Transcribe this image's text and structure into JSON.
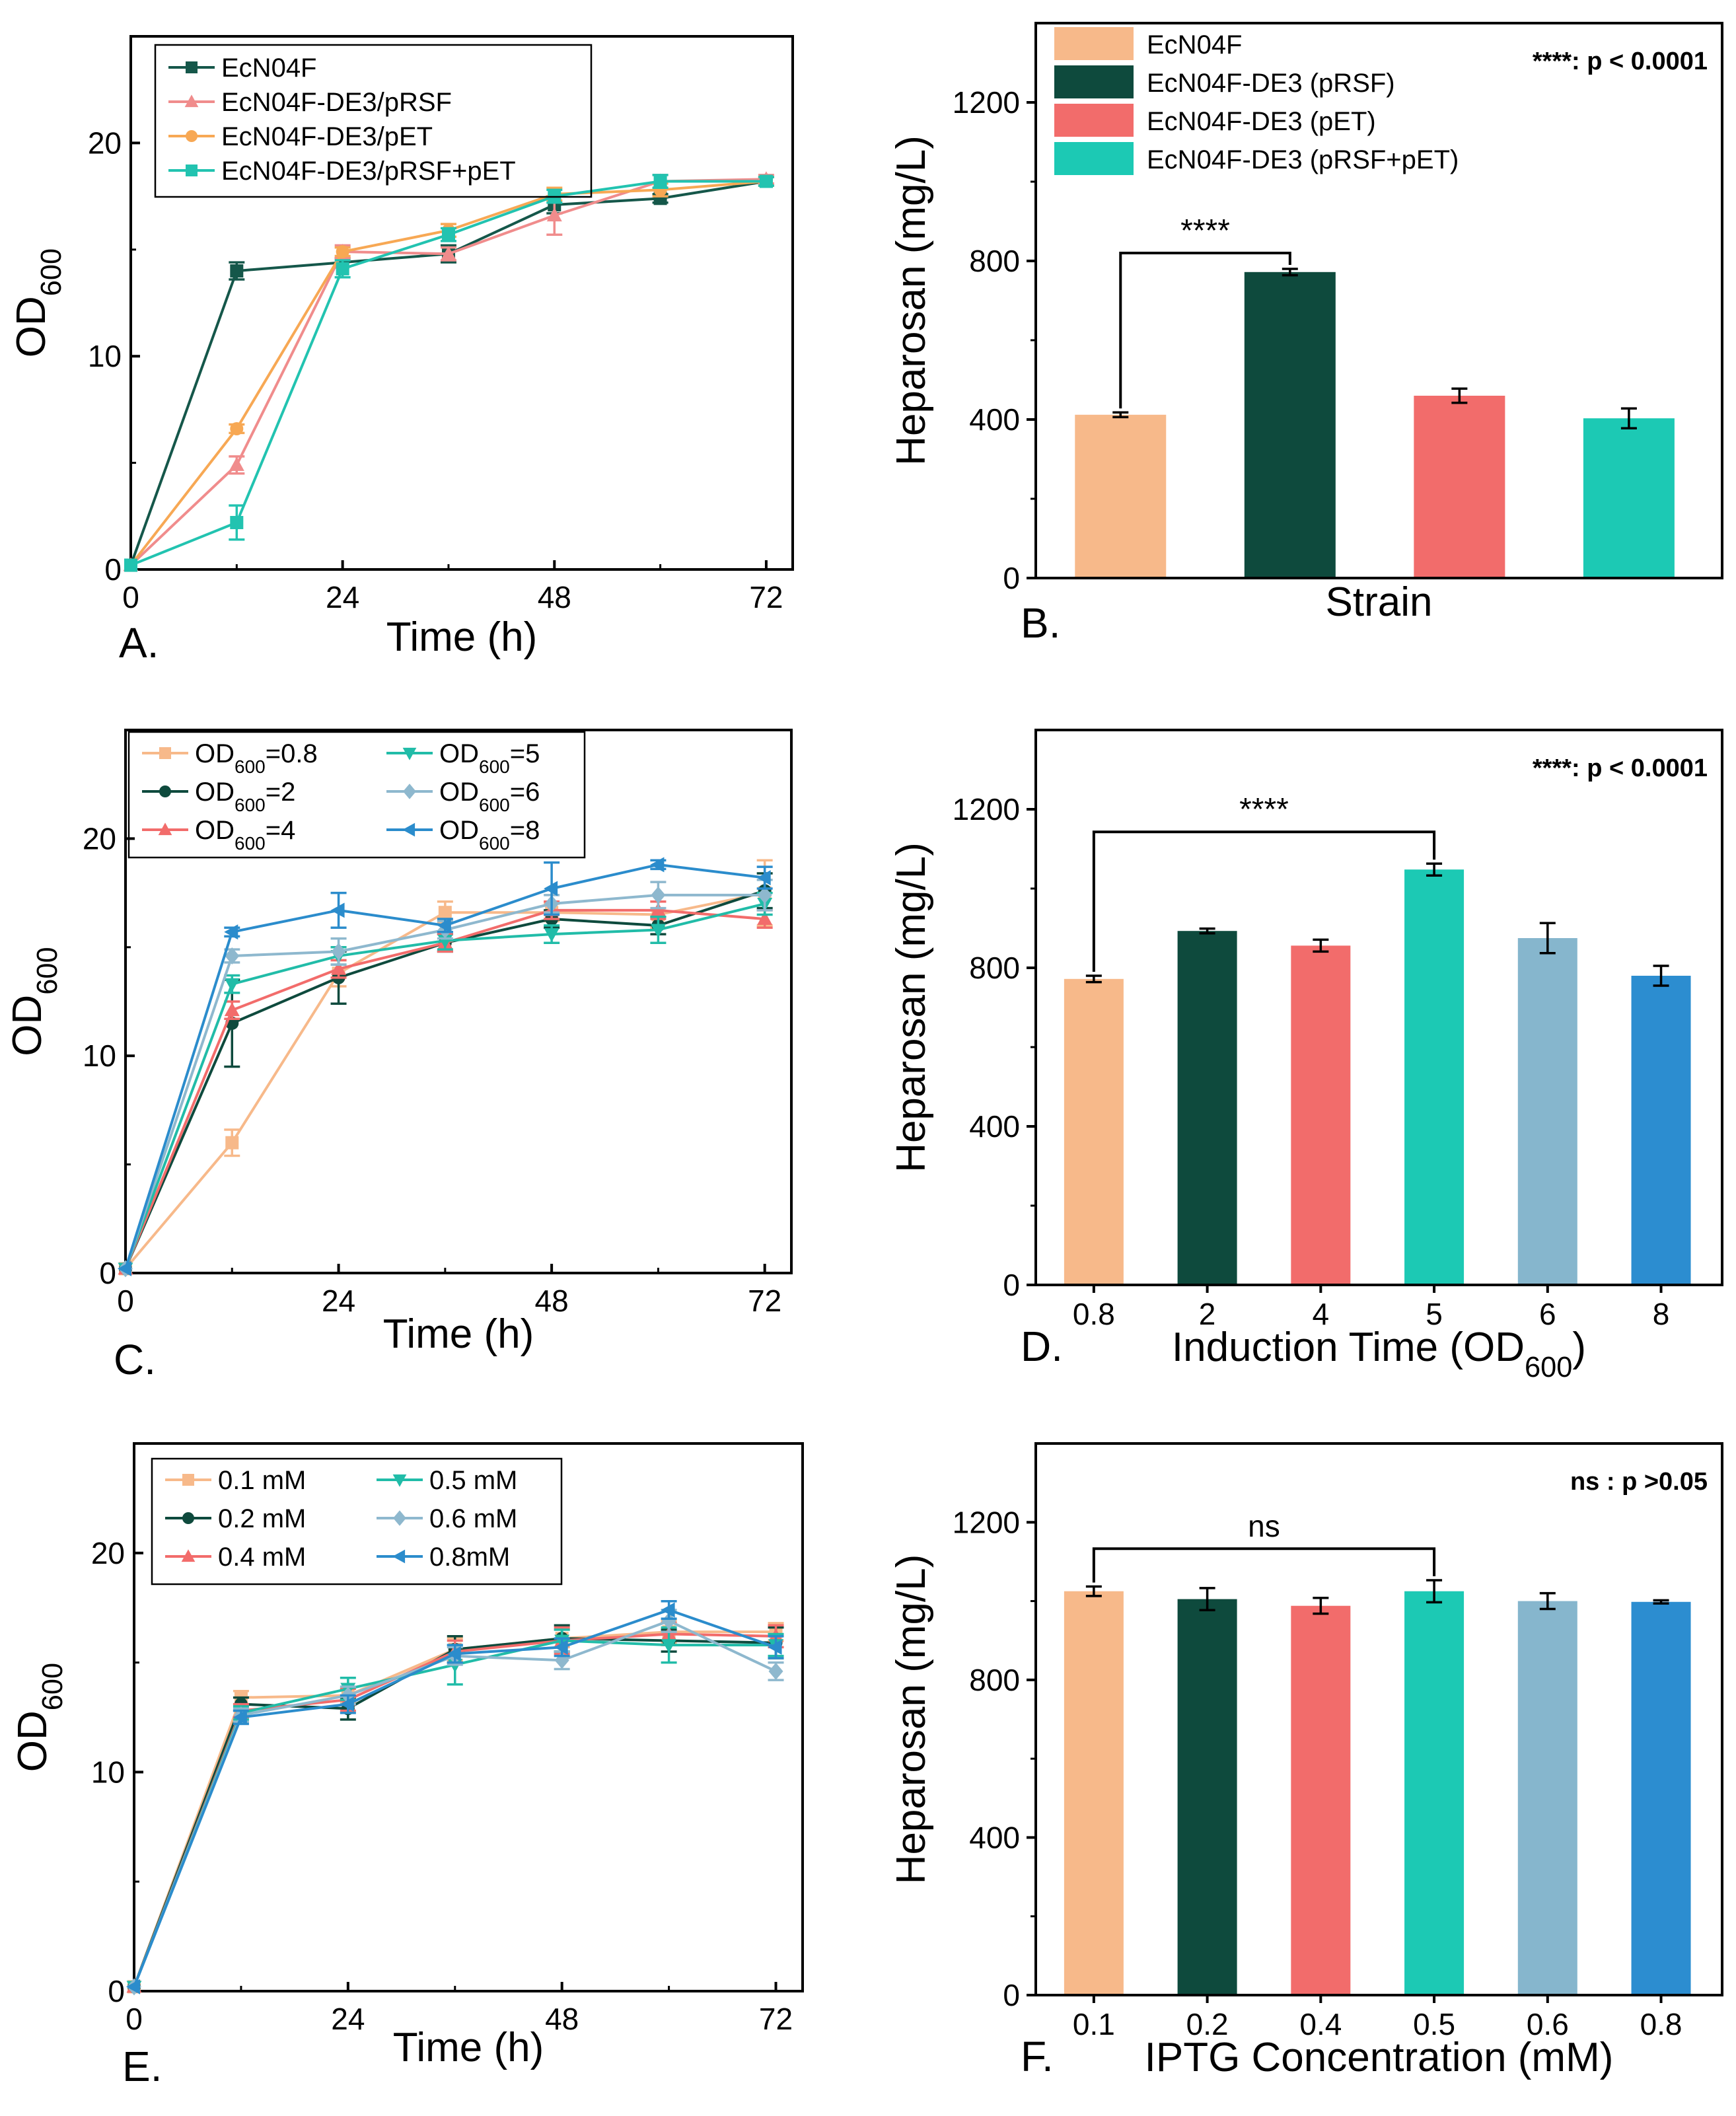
{
  "colors": {
    "peach": "#F7B98A",
    "darkgreen": "#0E4A3D",
    "red": "#F26C6B",
    "teal": "#1CC9B4",
    "lightblue": "#86B6CD",
    "blue": "#2C8DD0",
    "green_line": "#15574A",
    "pink_line": "#F08C8C",
    "orange_line": "#F7A854",
    "teal_line": "#22C3B0",
    "teal_line2": "#21BCA8",
    "grayblue_line": "#8EB8CE",
    "blue_line": "#2B8CCC"
  },
  "chart_data": [
    {
      "panel": "A.",
      "type": "line",
      "xlabel": "Time (h)",
      "ylabel": "OD600",
      "xlim": [
        0,
        75
      ],
      "ylim": [
        0,
        25
      ],
      "xticks": [
        "0",
        "24",
        "48",
        "72"
      ],
      "yticks": [
        "0",
        "10",
        "20"
      ],
      "series": [
        {
          "name": "EcN04F",
          "color": "#15574A",
          "marker": "square",
          "x": [
            0,
            12,
            24,
            36,
            48,
            60,
            72
          ],
          "y": [
            0.2,
            14.0,
            14.4,
            14.8,
            17.1,
            17.4,
            18.2
          ],
          "err": [
            0,
            0.4,
            0.2,
            0.4,
            0.4,
            0.2,
            0.2
          ]
        },
        {
          "name": "EcN04F-DE3/pRSF",
          "color": "#F08C8C",
          "marker": "triangle",
          "x": [
            0,
            12,
            24,
            36,
            48,
            60,
            72
          ],
          "y": [
            0.2,
            4.9,
            14.9,
            14.8,
            16.6,
            18.2,
            18.3
          ],
          "err": [
            0,
            0.4,
            0.3,
            0.3,
            0.9,
            0.3,
            0.2
          ]
        },
        {
          "name": "EcN04F-DE3/pET",
          "color": "#F7A854",
          "marker": "circle",
          "x": [
            0,
            12,
            24,
            36,
            48,
            60,
            72
          ],
          "y": [
            0.2,
            6.6,
            14.9,
            15.9,
            17.6,
            17.8,
            18.2
          ],
          "err": [
            0,
            0.2,
            0.2,
            0.3,
            0.3,
            0.3,
            0.2
          ]
        },
        {
          "name": "EcN04F-DE3/pRSF+pET",
          "color": "#22C3B0",
          "marker": "square",
          "x": [
            0,
            12,
            24,
            36,
            48,
            60,
            72
          ],
          "y": [
            0.2,
            2.2,
            14.1,
            15.7,
            17.5,
            18.2,
            18.2
          ],
          "err": [
            0,
            0.8,
            0.4,
            0.3,
            0.3,
            0.3,
            0.2
          ]
        }
      ]
    },
    {
      "panel": "B.",
      "type": "bar",
      "xlabel": "Strain",
      "ylabel": "Heparosan (mg/L)",
      "ylim": [
        0,
        1400
      ],
      "yticks": [
        "0",
        "400",
        "800",
        "1200"
      ],
      "categories": [
        "EcN04F",
        "EcN04F-DE3 (pRSF)",
        "EcN04F-DE3 (pET)",
        "EcN04F-DE3 (pRSF+pET)"
      ],
      "values": [
        412,
        772,
        460,
        403
      ],
      "errors": [
        6,
        8,
        18,
        25
      ],
      "colors": [
        "#F7B98A",
        "#0E4A3D",
        "#F26C6B",
        "#1CC9B4"
      ],
      "significance": {
        "label": "****",
        "from": 0,
        "to": 1,
        "note": "****: p < 0.0001"
      }
    },
    {
      "panel": "C.",
      "type": "line",
      "xlabel": "Time (h)",
      "ylabel": "OD600",
      "xlim": [
        0,
        75
      ],
      "ylim": [
        0,
        25
      ],
      "xticks": [
        "0",
        "24",
        "48",
        "72"
      ],
      "yticks": [
        "0",
        "10",
        "20"
      ],
      "series": [
        {
          "name": "OD600=0.8",
          "color": "#F7B98A",
          "marker": "square",
          "x": [
            0,
            12,
            24,
            36,
            48,
            60,
            72
          ],
          "y": [
            0.2,
            6.0,
            13.8,
            16.6,
            16.6,
            16.5,
            17.5
          ],
          "err": [
            0,
            0.6,
            0.6,
            0.5,
            0.4,
            0.6,
            1.5
          ]
        },
        {
          "name": "OD600=2",
          "color": "#0E4A3D",
          "marker": "circle",
          "x": [
            0,
            12,
            24,
            36,
            48,
            60,
            72
          ],
          "y": [
            0.2,
            11.5,
            13.6,
            15.2,
            16.3,
            16.0,
            17.6
          ],
          "err": [
            0,
            2.0,
            1.2,
            0.4,
            0.4,
            0.4,
            0.8
          ]
        },
        {
          "name": "OD600=4",
          "color": "#F26C6B",
          "marker": "triangle",
          "x": [
            0,
            12,
            24,
            36,
            48,
            60,
            72
          ],
          "y": [
            0.2,
            12.1,
            14.0,
            15.2,
            16.7,
            16.7,
            16.3
          ],
          "err": [
            0,
            0.4,
            0.4,
            0.4,
            0.4,
            0.4,
            0.4
          ]
        },
        {
          "name": "OD600=5",
          "color": "#21BCA8",
          "marker": "tri-down",
          "x": [
            0,
            12,
            24,
            36,
            48,
            60,
            72
          ],
          "y": [
            0.2,
            13.3,
            14.6,
            15.3,
            15.6,
            15.8,
            17.0
          ],
          "err": [
            0,
            0.4,
            0.4,
            0.4,
            0.4,
            0.6,
            0.5
          ]
        },
        {
          "name": "OD600=6",
          "color": "#8EB8CE",
          "marker": "diamond",
          "x": [
            0,
            12,
            24,
            36,
            48,
            60,
            72
          ],
          "y": [
            0.2,
            14.6,
            14.8,
            15.8,
            17.0,
            17.4,
            17.4
          ],
          "err": [
            0,
            0.3,
            0.6,
            0.4,
            0.4,
            0.6,
            0.7
          ]
        },
        {
          "name": "OD600=8",
          "color": "#2B8CCC",
          "marker": "tri-left",
          "x": [
            0,
            12,
            24,
            36,
            48,
            60,
            72
          ],
          "y": [
            0.2,
            15.7,
            16.7,
            16.0,
            17.7,
            18.8,
            18.2
          ],
          "err": [
            0,
            0.2,
            0.8,
            0.3,
            1.2,
            0.2,
            0.5
          ]
        }
      ]
    },
    {
      "panel": "D.",
      "type": "bar",
      "xlabel": "Induction Time (OD600)",
      "ylabel": "Heparosan (mg/L)",
      "ylim": [
        0,
        1400
      ],
      "yticks": [
        "0",
        "400",
        "800",
        "1200"
      ],
      "categories": [
        "0.8",
        "2",
        "4",
        "5",
        "6",
        "8"
      ],
      "values": [
        772,
        893,
        856,
        1048,
        875,
        780
      ],
      "errors": [
        8,
        6,
        15,
        15,
        38,
        25
      ],
      "colors": [
        "#F7B98A",
        "#0E4A3D",
        "#F26C6B",
        "#1CC9B4",
        "#86B6CD",
        "#2C8DD0"
      ],
      "significance": {
        "label": "****",
        "from": 0,
        "to": 3,
        "note": "****: p < 0.0001"
      }
    },
    {
      "panel": "E.",
      "type": "line",
      "xlabel": "Time (h)",
      "ylabel": "OD600",
      "xlim": [
        0,
        75
      ],
      "ylim": [
        0,
        25
      ],
      "xticks": [
        "0",
        "24",
        "48",
        "72"
      ],
      "yticks": [
        "0",
        "10",
        "20"
      ],
      "series": [
        {
          "name": "0.1 mM",
          "color": "#F7B98A",
          "marker": "square",
          "x": [
            0,
            12,
            24,
            36,
            48,
            60,
            72
          ],
          "y": [
            0.2,
            13.4,
            13.5,
            15.6,
            16.1,
            16.4,
            16.4
          ],
          "err": [
            0,
            0.3,
            0.3,
            0.5,
            0.4,
            0.5,
            0.4
          ]
        },
        {
          "name": "0.2 mM",
          "color": "#0E4A3D",
          "marker": "circle",
          "x": [
            0,
            12,
            24,
            36,
            48,
            60,
            72
          ],
          "y": [
            0.2,
            13.1,
            12.9,
            15.6,
            16.1,
            16.0,
            15.9
          ],
          "err": [
            0,
            0.3,
            0.5,
            0.6,
            0.6,
            0.5,
            0.7
          ]
        },
        {
          "name": "0.4 mM",
          "color": "#F26C6B",
          "marker": "triangle",
          "x": [
            0,
            12,
            24,
            36,
            48,
            60,
            72
          ],
          "y": [
            0.2,
            12.8,
            13.3,
            15.5,
            16.0,
            16.3,
            16.2
          ],
          "err": [
            0,
            0.3,
            0.5,
            0.5,
            0.6,
            0.5,
            0.5
          ]
        },
        {
          "name": "0.5 mM",
          "color": "#21BCA8",
          "marker": "tri-down",
          "x": [
            0,
            12,
            24,
            36,
            48,
            60,
            72
          ],
          "y": [
            0.2,
            12.7,
            13.8,
            14.9,
            16.0,
            15.8,
            15.8
          ],
          "err": [
            0,
            0.3,
            0.5,
            0.9,
            0.5,
            0.8,
            0.5
          ]
        },
        {
          "name": "0.6 mM",
          "color": "#8EB8CE",
          "marker": "diamond",
          "x": [
            0,
            12,
            24,
            36,
            48,
            60,
            72
          ],
          "y": [
            0.2,
            12.6,
            13.5,
            15.3,
            15.1,
            16.9,
            14.6
          ],
          "err": [
            0,
            0.3,
            0.4,
            0.4,
            0.4,
            0.5,
            0.4
          ]
        },
        {
          "name": "0.8mM",
          "color": "#2B8CCC",
          "marker": "tri-left",
          "x": [
            0,
            12,
            24,
            36,
            48,
            60,
            72
          ],
          "y": [
            0.2,
            12.5,
            13.1,
            15.4,
            15.7,
            17.4,
            15.7
          ],
          "err": [
            0,
            0.3,
            0.4,
            0.4,
            0.4,
            0.4,
            0.5
          ]
        }
      ]
    },
    {
      "panel": "F.",
      "type": "bar",
      "xlabel": "IPTG Concentration (mM)",
      "ylabel": "Heparosan (mg/L)",
      "ylim": [
        0,
        1400
      ],
      "yticks": [
        "0",
        "400",
        "800",
        "1200"
      ],
      "categories": [
        "0.1",
        "0.2",
        "0.4",
        "0.5",
        "0.6",
        "0.8"
      ],
      "values": [
        1025,
        1005,
        988,
        1025,
        1000,
        998
      ],
      "errors": [
        12,
        28,
        20,
        28,
        20,
        4
      ],
      "colors": [
        "#F7B98A",
        "#0E4A3D",
        "#F26C6B",
        "#1CC9B4",
        "#86B6CD",
        "#2C8DD0"
      ],
      "significance": {
        "label": "ns",
        "from": 0,
        "to": 3,
        "note": "ns : p >0.05"
      }
    }
  ]
}
